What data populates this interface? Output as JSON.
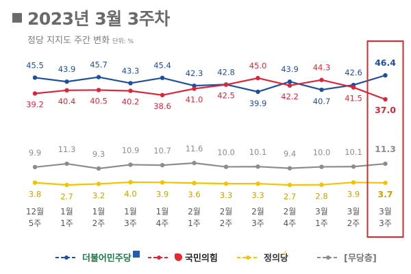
{
  "header": {
    "title": "2023년 3월 3주차",
    "subtitle": "정당 지지도 주간 변화",
    "unit": "단위: %"
  },
  "chart_data": {
    "type": "line",
    "categories": [
      [
        "12월",
        "5주"
      ],
      [
        "1월",
        "1주"
      ],
      [
        "1월",
        "2주"
      ],
      [
        "1월",
        "3주"
      ],
      [
        "1월",
        "4주"
      ],
      [
        "2월",
        "1주"
      ],
      [
        "2월",
        "2주"
      ],
      [
        "2월",
        "3주"
      ],
      [
        "2월",
        "4주"
      ],
      [
        "3월",
        "1주"
      ],
      [
        "3월",
        "2주"
      ],
      [
        "3월",
        "3주"
      ]
    ],
    "series": [
      {
        "name": "더불어민주당",
        "color": "#1f4e9b",
        "values": [
          45.5,
          43.9,
          45.7,
          43.3,
          45.4,
          42.3,
          42.8,
          39.9,
          43.9,
          40.7,
          42.6,
          46.4
        ]
      },
      {
        "name": "국민의힘",
        "color": "#d9263a",
        "values": [
          39.2,
          40.4,
          40.5,
          40.2,
          38.6,
          41.0,
          42.5,
          45.0,
          42.2,
          44.3,
          41.5,
          37.0
        ]
      },
      {
        "name": "정의당",
        "color": "#f2c300",
        "values": [
          3.8,
          2.7,
          3.2,
          4.0,
          3.9,
          3.6,
          3.3,
          3.3,
          2.7,
          2.8,
          3.9,
          3.7
        ]
      },
      {
        "name": "[무당층]",
        "color": "#8c8c8c",
        "values": [
          9.9,
          11.3,
          9.3,
          10.9,
          10.7,
          11.6,
          10.0,
          10.1,
          9.4,
          10.0,
          10.1,
          11.3
        ]
      }
    ],
    "highlight_category": 11,
    "highlight_color": "#d9262a"
  }
}
